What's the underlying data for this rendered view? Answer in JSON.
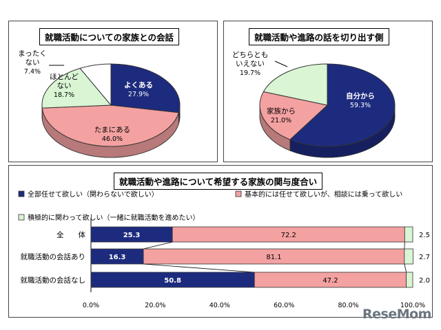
{
  "chart_data": [
    {
      "type": "pie",
      "title": "就職活動についての家族との会話",
      "slices": [
        {
          "label": "よくある",
          "value_label": "27.9%",
          "value": 27.9,
          "color": "#1d2b7e"
        },
        {
          "label": "たまにある",
          "value_label": "46.0%",
          "value": 46.0,
          "color": "#f4a1a1"
        },
        {
          "label": "ほとんど\nない",
          "value_label": "18.7%",
          "value": 18.7,
          "color": "#d9f5d4"
        },
        {
          "label": "まったく\nない",
          "value_label": "7.4%",
          "value": 7.4,
          "color": "#ffffff"
        }
      ]
    },
    {
      "type": "pie",
      "title": "就職活動や進路の話を切り出す側",
      "slices": [
        {
          "label": "自分から",
          "value_label": "59.3%",
          "value": 59.3,
          "color": "#1d2b7e"
        },
        {
          "label": "家族から",
          "value_label": "21.0%",
          "value": 21.0,
          "color": "#f4a1a1"
        },
        {
          "label": "どちらとも\nいえない",
          "value_label": "19.7%",
          "value": 19.7,
          "color": "#d9f5d4"
        }
      ]
    },
    {
      "type": "bar",
      "orientation": "horizontal",
      "stacked": true,
      "title": "就職活動や進路について希望する家族の関与度合い",
      "categories": [
        "全　　体",
        "就職活動の会話あり",
        "就職活動の会話なし"
      ],
      "series": [
        {
          "name": "全部任せて欲しい（関わらないで欲しい）",
          "values": [
            25.3,
            16.3,
            50.8
          ],
          "labels": [
            "25.3",
            "16.3",
            "50.8"
          ],
          "color": "#1d2b7e"
        },
        {
          "name": "基本的には任せて欲しいが、相談には乗って欲しい",
          "values": [
            72.2,
            81.1,
            47.2
          ],
          "labels": [
            "72.2",
            "81.1",
            "47.2"
          ],
          "color": "#f4a1a1"
        },
        {
          "name": "積極的に関わって欲しい（一緒に就職活動を進めたい）",
          "values": [
            2.5,
            2.7,
            2.0
          ],
          "labels": [
            "2.5",
            "2.7",
            "2.0"
          ],
          "color": "#d9f5d4"
        }
      ],
      "x_ticks": [
        "0.0%",
        "20.0%",
        "40.0%",
        "60.0%",
        "80.0%",
        "100.0%"
      ],
      "xlim": [
        0,
        100
      ],
      "legend": "top-left"
    }
  ],
  "watermark": "ReseMom"
}
